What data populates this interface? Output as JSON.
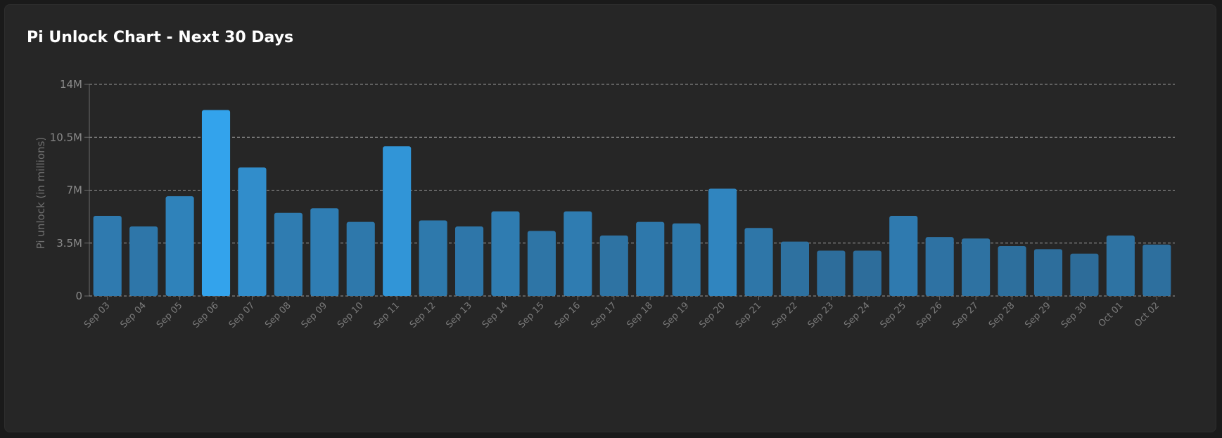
{
  "title": "Pi Unlock Chart - Next 30 Days",
  "chart_data": {
    "type": "bar",
    "title": "Pi Unlock Chart - Next 30 Days",
    "xlabel": "",
    "ylabel": "Pi unlock (in millions)",
    "ylim": [
      0,
      14000000
    ],
    "yticks": [
      0,
      3500000,
      7000000,
      10500000,
      14000000
    ],
    "ytick_labels": [
      "0",
      "3.5M",
      "7M",
      "10.5M",
      "14M"
    ],
    "grid": true,
    "categories": [
      "Sep 03",
      "Sep 04",
      "Sep 05",
      "Sep 06",
      "Sep 07",
      "Sep 08",
      "Sep 09",
      "Sep 10",
      "Sep 11",
      "Sep 12",
      "Sep 13",
      "Sep 14",
      "Sep 15",
      "Sep 16",
      "Sep 17",
      "Sep 18",
      "Sep 19",
      "Sep 20",
      "Sep 21",
      "Sep 22",
      "Sep 23",
      "Sep 24",
      "Sep 25",
      "Sep 26",
      "Sep 27",
      "Sep 28",
      "Sep 29",
      "Sep 30",
      "Oct 01",
      "Oct 02"
    ],
    "values": [
      5300000,
      4600000,
      6600000,
      12300000,
      8500000,
      5500000,
      5800000,
      4900000,
      9900000,
      5000000,
      4600000,
      5600000,
      4300000,
      5600000,
      4000000,
      4900000,
      4800000,
      7100000,
      4500000,
      3600000,
      3000000,
      3000000,
      5300000,
      3900000,
      3800000,
      3300000,
      3100000,
      2800000,
      4000000,
      3400000
    ]
  },
  "colors": {
    "bar_low": "#2d6c99",
    "bar_high": "#33a3ec",
    "grid": "#9a9a9a",
    "axis": "#6a6a6a",
    "background": "#262626"
  }
}
